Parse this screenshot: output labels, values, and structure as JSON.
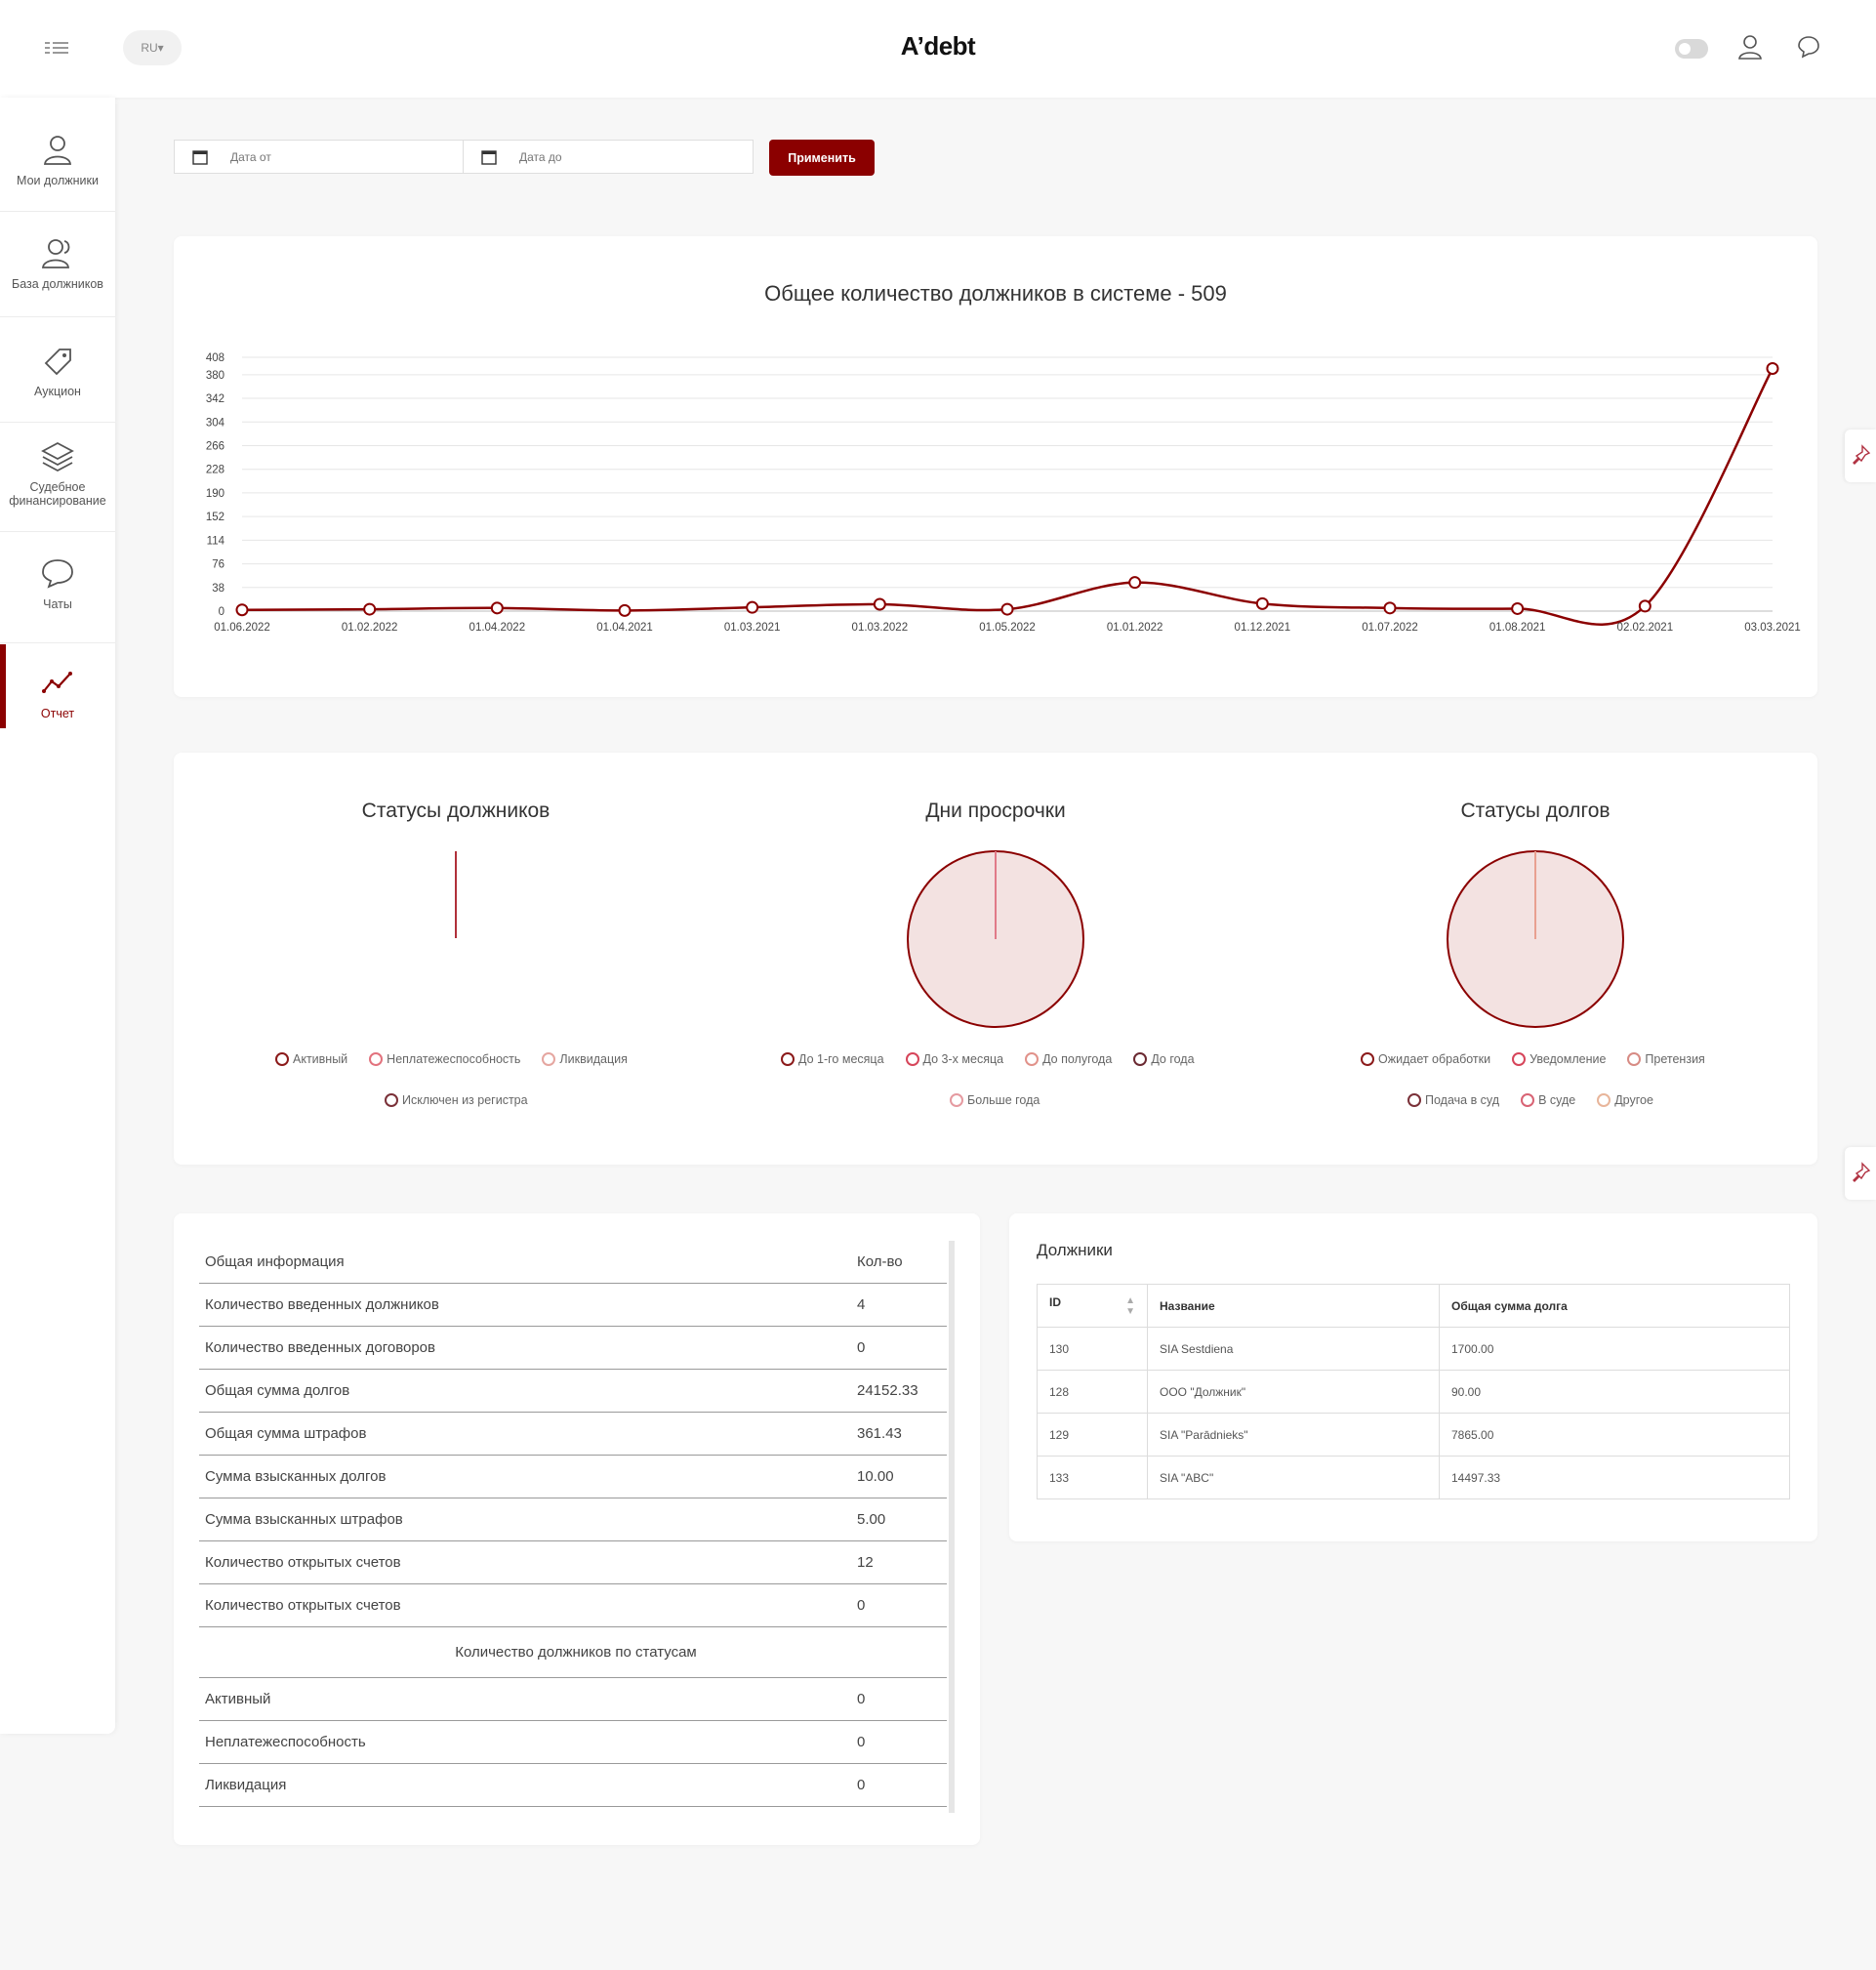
{
  "header": {
    "brand": "A’debt",
    "language": "RU"
  },
  "sidebar": {
    "items": [
      {
        "label": "Мои должники",
        "icon": "user-icon"
      },
      {
        "label": "База должников",
        "icon": "users-icon"
      },
      {
        "label": "Аукцион",
        "icon": "tag-icon"
      },
      {
        "label": "Судебное финансирование",
        "icon": "layers-icon"
      },
      {
        "label": "Чаты",
        "icon": "chat-icon"
      },
      {
        "label": "Отчет",
        "icon": "trend-icon",
        "active": true
      }
    ]
  },
  "filters": {
    "date_from_placeholder": "Дата от",
    "date_to_placeholder": "Дата до",
    "apply_label": "Применить"
  },
  "colors": {
    "accent": "#8b0000",
    "pie_fill": "#f3e2e1"
  },
  "line_chart": {
    "title": "Общее количество должников в системе - 509"
  },
  "pies": {
    "debtor_statuses": {
      "title": "Статусы должников",
      "legend": [
        "Активный",
        "Неплатежеспособность",
        "Ликвидация",
        "Исключен из регистра"
      ],
      "legend_colors": [
        "#8b1a1a",
        "#e2727d",
        "#e5a6a0",
        "#7a3038"
      ]
    },
    "overdue_days": {
      "title": "Дни просрочки",
      "legend": [
        "До 1-го месяца",
        "До 3-х месяца",
        "До полугода",
        "До года",
        "Больше года"
      ],
      "legend_colors": [
        "#8b1a1a",
        "#d6455a",
        "#e1928a",
        "#6b2a32",
        "#e59aa0"
      ]
    },
    "debt_statuses": {
      "title": "Статусы долгов",
      "legend": [
        "Ожидает обработки",
        "Уведомление",
        "Претензия",
        "Подача в суд",
        "В суде",
        "Другое"
      ],
      "legend_colors": [
        "#8b1a1a",
        "#d6455a",
        "#d78b84",
        "#7a3038",
        "#d86374",
        "#e8b59a"
      ]
    }
  },
  "chart_data": [
    {
      "type": "line",
      "title": "Общее количество должников в системе - 509",
      "categories": [
        "01.06.2022",
        "01.02.2022",
        "01.04.2022",
        "01.04.2021",
        "01.03.2021",
        "01.03.2022",
        "01.05.2022",
        "01.01.2022",
        "01.12.2021",
        "01.07.2022",
        "01.08.2021",
        "02.02.2021",
        "03.03.2021"
      ],
      "values": [
        2,
        3,
        5,
        1,
        6,
        11,
        3,
        46,
        12,
        5,
        4,
        8,
        390
      ],
      "y_ticks": [
        0,
        38,
        76,
        114,
        152,
        190,
        228,
        266,
        304,
        342,
        380,
        408
      ],
      "ylim": [
        0,
        408
      ],
      "grid": true
    },
    {
      "type": "pie",
      "title": "Статусы должников",
      "labels": [
        "Активный",
        "Неплатежеспособность",
        "Ликвидация",
        "Исключен из регистра"
      ],
      "values": [
        0,
        0,
        0,
        0
      ]
    },
    {
      "type": "pie",
      "title": "Дни просрочки",
      "labels": [
        "До 1-го месяца",
        "До 3-х месяца",
        "До полугода",
        "До года",
        "Больше года"
      ],
      "values": [
        0,
        0,
        0,
        0,
        1
      ]
    },
    {
      "type": "pie",
      "title": "Статусы долгов",
      "labels": [
        "Ожидает обработки",
        "Уведомление",
        "Претензия",
        "Подача в суд",
        "В суде",
        "Другое"
      ],
      "values": [
        0,
        0,
        0,
        0,
        0,
        1
      ]
    }
  ],
  "info_table": {
    "header": {
      "label": "Общая информация",
      "qty": "Кол-во"
    },
    "rows": [
      {
        "label": "Количество введенных должников",
        "value": "4"
      },
      {
        "label": "Количество введенных договоров",
        "value": "0"
      },
      {
        "label": "Общая сумма долгов",
        "value": "24152.33"
      },
      {
        "label": "Общая сумма штрафов",
        "value": "361.43"
      },
      {
        "label": "Сумма взысканных долгов",
        "value": "10.00"
      },
      {
        "label": "Сумма взысканных штрафов",
        "value": "5.00"
      },
      {
        "label": "Количество открытых счетов",
        "value": "12"
      },
      {
        "label": "Количество открытых счетов",
        "value": "0"
      }
    ],
    "section_title": "Количество должников по статусам",
    "status_rows": [
      {
        "label": "Активный",
        "value": "0"
      },
      {
        "label": "Неплатежеспособность",
        "value": "0"
      },
      {
        "label": "Ликвидация",
        "value": "0"
      }
    ]
  },
  "debtors": {
    "title": "Должники",
    "columns": [
      "ID",
      "Название",
      "Общая сумма долга"
    ],
    "rows": [
      {
        "id": "130",
        "name": "SIA Sestdiena",
        "total": "1700.00"
      },
      {
        "id": "128",
        "name": "ООО \"Должник\"",
        "total": "90.00"
      },
      {
        "id": "129",
        "name": "SIA \"Parādnieks\"",
        "total": "7865.00"
      },
      {
        "id": "133",
        "name": "SIA \"ABC\"",
        "total": "14497.33"
      }
    ]
  }
}
